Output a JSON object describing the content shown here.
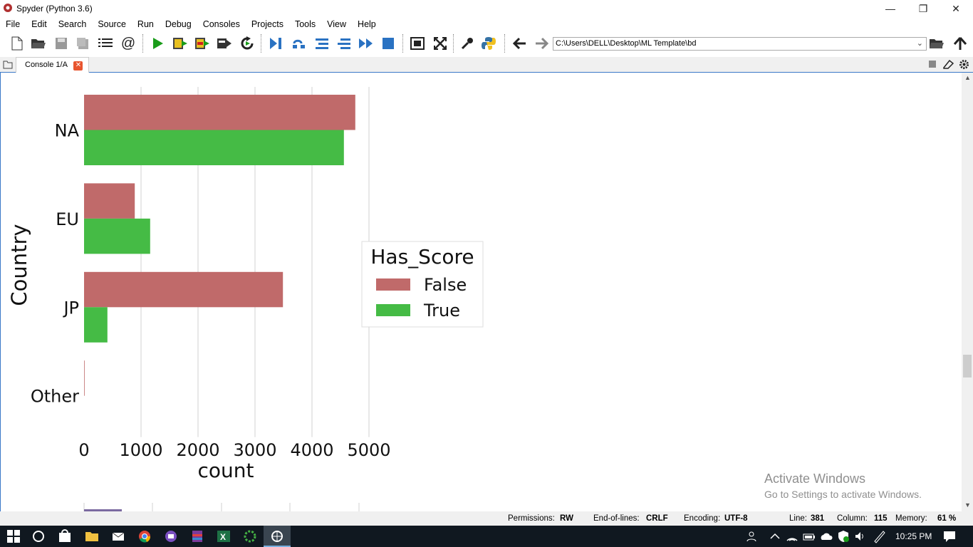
{
  "window": {
    "title": "Spyder (Python 3.6)"
  },
  "menu": [
    "File",
    "Edit",
    "Search",
    "Source",
    "Run",
    "Debug",
    "Consoles",
    "Projects",
    "Tools",
    "View",
    "Help"
  ],
  "toolbar": {
    "path": "C:\\Users\\DELL\\Desktop\\ML Template\\bd"
  },
  "console_tab": {
    "label": "Console 1/A"
  },
  "chart_data": {
    "type": "bar",
    "orientation": "horizontal",
    "categories": [
      "NA",
      "EU",
      "JP",
      "Other"
    ],
    "series": [
      {
        "name": "False",
        "color": "#c06a6a",
        "values": [
          4760,
          890,
          3490,
          10
        ]
      },
      {
        "name": "True",
        "color": "#45bb45",
        "values": [
          4560,
          1160,
          410,
          0
        ]
      }
    ],
    "xlabel": "count",
    "ylabel": "Country",
    "xticks": [
      0,
      1000,
      2000,
      3000,
      4000,
      5000
    ],
    "xlim": [
      0,
      5000
    ],
    "grid": "vertical",
    "legend": {
      "title": "Has_Score",
      "position": "center"
    }
  },
  "watermark": {
    "line1": "Activate Windows",
    "line2": "Go to Settings to activate Windows."
  },
  "status": {
    "permissions_label": "Permissions:",
    "permissions": "RW",
    "eol_label": "End-of-lines:",
    "eol": "CRLF",
    "encoding_label": "Encoding:",
    "encoding": "UTF-8",
    "line_label": "Line:",
    "line": "381",
    "column_label": "Column:",
    "column": "115",
    "memory_label": "Memory:",
    "memory": "61 %"
  },
  "taskbar": {
    "time": "10:25 PM"
  }
}
